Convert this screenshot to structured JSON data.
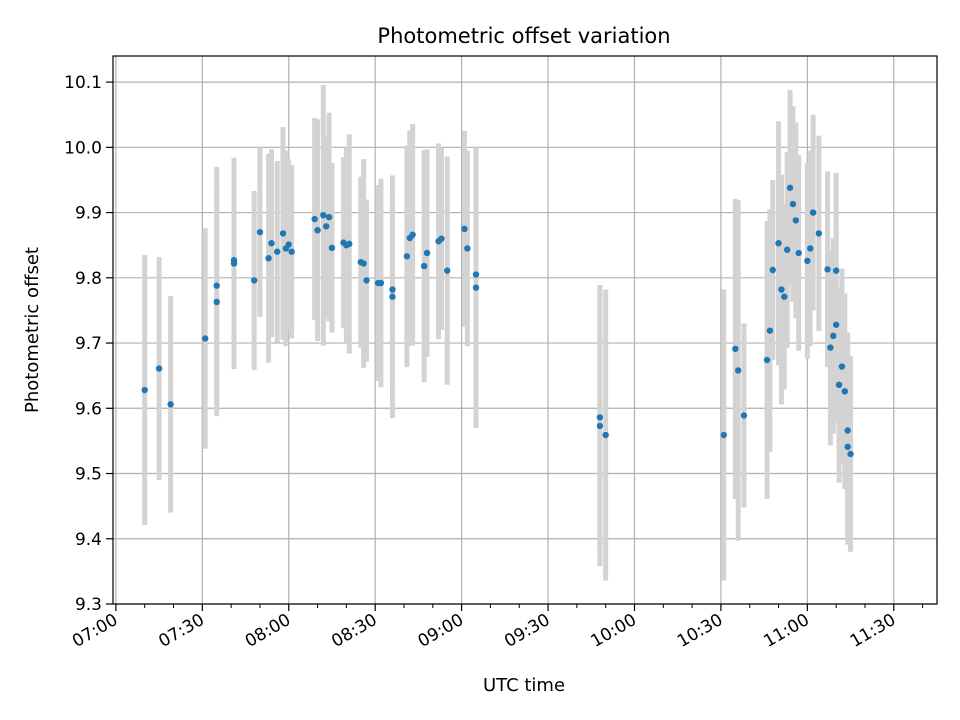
{
  "chart_data": {
    "type": "scatter",
    "title": "Photometric offset variation",
    "xlabel": "UTC time",
    "ylabel": "Photometric offset",
    "xlim": [
      "06:59",
      "11:45"
    ],
    "ylim": [
      9.3,
      10.14
    ],
    "x_ticks": [
      "07:00",
      "07:30",
      "08:00",
      "08:30",
      "09:00",
      "09:30",
      "10:00",
      "10:30",
      "11:00",
      "11:30"
    ],
    "y_ticks": [
      "9.3",
      "9.4",
      "9.5",
      "9.6",
      "9.7",
      "9.8",
      "9.9",
      "10.0",
      "10.1"
    ],
    "grid": true,
    "colors": {
      "point": "#1f77b4",
      "errorbar": "#d3d3d3",
      "grid": "#b0b0b0"
    },
    "series": [
      {
        "points": [
          {
            "x": "07:10",
            "y": 9.628,
            "err": 0.207
          },
          {
            "x": "07:15",
            "y": 9.661,
            "err": 0.171
          },
          {
            "x": "07:19",
            "y": 9.606,
            "err": 0.166
          },
          {
            "x": "07:31",
            "y": 9.707,
            "err": 0.169
          },
          {
            "x": "07:35",
            "y": 9.763,
            "err": 0.175
          },
          {
            "x": "07:35",
            "y": 9.788,
            "err": 0.182
          },
          {
            "x": "07:41",
            "y": 9.827,
            "err": 0.153
          },
          {
            "x": "07:41",
            "y": 9.822,
            "err": 0.162
          },
          {
            "x": "07:48",
            "y": 9.796,
            "err": 0.137
          },
          {
            "x": "07:50",
            "y": 9.87,
            "err": 0.13
          },
          {
            "x": "07:53",
            "y": 9.83,
            "err": 0.16
          },
          {
            "x": "07:54",
            "y": 9.853,
            "err": 0.144
          },
          {
            "x": "07:56",
            "y": 9.84,
            "err": 0.139
          },
          {
            "x": "07:58",
            "y": 9.868,
            "err": 0.163
          },
          {
            "x": "07:59",
            "y": 9.845,
            "err": 0.15
          },
          {
            "x": "08:00",
            "y": 9.851,
            "err": 0.131
          },
          {
            "x": "08:01",
            "y": 9.84,
            "err": 0.133
          },
          {
            "x": "08:09",
            "y": 9.89,
            "err": 0.155
          },
          {
            "x": "08:10",
            "y": 9.873,
            "err": 0.17
          },
          {
            "x": "08:12",
            "y": 9.896,
            "err": 0.2
          },
          {
            "x": "08:13",
            "y": 9.879,
            "err": 0.14
          },
          {
            "x": "08:14",
            "y": 9.893,
            "err": 0.16
          },
          {
            "x": "08:15",
            "y": 9.846,
            "err": 0.13
          },
          {
            "x": "08:19",
            "y": 9.854,
            "err": 0.131
          },
          {
            "x": "08:20",
            "y": 9.85,
            "err": 0.15
          },
          {
            "x": "08:21",
            "y": 9.852,
            "err": 0.168
          },
          {
            "x": "08:25",
            "y": 9.824,
            "err": 0.131
          },
          {
            "x": "08:26",
            "y": 9.822,
            "err": 0.16
          },
          {
            "x": "08:27",
            "y": 9.796,
            "err": 0.124
          },
          {
            "x": "08:31",
            "y": 9.792,
            "err": 0.15
          },
          {
            "x": "08:32",
            "y": 9.792,
            "err": 0.16
          },
          {
            "x": "08:36",
            "y": 9.782,
            "err": 0.147
          },
          {
            "x": "08:36",
            "y": 9.771,
            "err": 0.186
          },
          {
            "x": "08:41",
            "y": 9.833,
            "err": 0.17
          },
          {
            "x": "08:42",
            "y": 9.861,
            "err": 0.165
          },
          {
            "x": "08:43",
            "y": 9.866,
            "err": 0.17
          },
          {
            "x": "08:47",
            "y": 9.818,
            "err": 0.178
          },
          {
            "x": "08:48",
            "y": 9.838,
            "err": 0.159
          },
          {
            "x": "08:52",
            "y": 9.856,
            "err": 0.15
          },
          {
            "x": "08:53",
            "y": 9.86,
            "err": 0.14
          },
          {
            "x": "08:55",
            "y": 9.811,
            "err": 0.175
          },
          {
            "x": "09:01",
            "y": 9.875,
            "err": 0.15
          },
          {
            "x": "09:02",
            "y": 9.845,
            "err": 0.15
          },
          {
            "x": "09:05",
            "y": 9.805,
            "err": 0.177
          },
          {
            "x": "09:05",
            "y": 9.785,
            "err": 0.215
          },
          {
            "x": "09:48",
            "y": 9.586,
            "err": 0.203
          },
          {
            "x": "09:48",
            "y": 9.573,
            "err": 0.215
          },
          {
            "x": "09:50",
            "y": 9.559,
            "err": 0.223
          },
          {
            "x": "10:31",
            "y": 9.559,
            "err": 0.223
          },
          {
            "x": "10:35",
            "y": 9.691,
            "err": 0.23
          },
          {
            "x": "10:36",
            "y": 9.658,
            "err": 0.261
          },
          {
            "x": "10:38",
            "y": 9.589,
            "err": 0.141
          },
          {
            "x": "10:46",
            "y": 9.674,
            "err": 0.213
          },
          {
            "x": "10:47",
            "y": 9.719,
            "err": 0.186
          },
          {
            "x": "10:48",
            "y": 9.812,
            "err": 0.138
          },
          {
            "x": "10:50",
            "y": 9.853,
            "err": 0.187
          },
          {
            "x": "10:51",
            "y": 9.782,
            "err": 0.176
          },
          {
            "x": "10:52",
            "y": 9.771,
            "err": 0.142
          },
          {
            "x": "10:53",
            "y": 9.843,
            "err": 0.15
          },
          {
            "x": "10:54",
            "y": 9.938,
            "err": 0.15
          },
          {
            "x": "10:55",
            "y": 9.913,
            "err": 0.15
          },
          {
            "x": "10:56",
            "y": 9.888,
            "err": 0.15
          },
          {
            "x": "10:57",
            "y": 9.838,
            "err": 0.15
          },
          {
            "x": "11:00",
            "y": 9.826,
            "err": 0.15
          },
          {
            "x": "11:01",
            "y": 9.845,
            "err": 0.15
          },
          {
            "x": "11:02",
            "y": 9.9,
            "err": 0.15
          },
          {
            "x": "11:04",
            "y": 9.868,
            "err": 0.15
          },
          {
            "x": "11:07",
            "y": 9.813,
            "err": 0.15
          },
          {
            "x": "11:08",
            "y": 9.693,
            "err": 0.15
          },
          {
            "x": "11:09",
            "y": 9.711,
            "err": 0.15
          },
          {
            "x": "11:10",
            "y": 9.811,
            "err": 0.15
          },
          {
            "x": "11:10",
            "y": 9.728,
            "err": 0.15
          },
          {
            "x": "11:11",
            "y": 9.636,
            "err": 0.15
          },
          {
            "x": "11:12",
            "y": 9.664,
            "err": 0.15
          },
          {
            "x": "11:13",
            "y": 9.626,
            "err": 0.15
          },
          {
            "x": "11:14",
            "y": 9.566,
            "err": 0.15
          },
          {
            "x": "11:14",
            "y": 9.541,
            "err": 0.15
          },
          {
            "x": "11:15",
            "y": 9.53,
            "err": 0.15
          }
        ]
      }
    ]
  }
}
